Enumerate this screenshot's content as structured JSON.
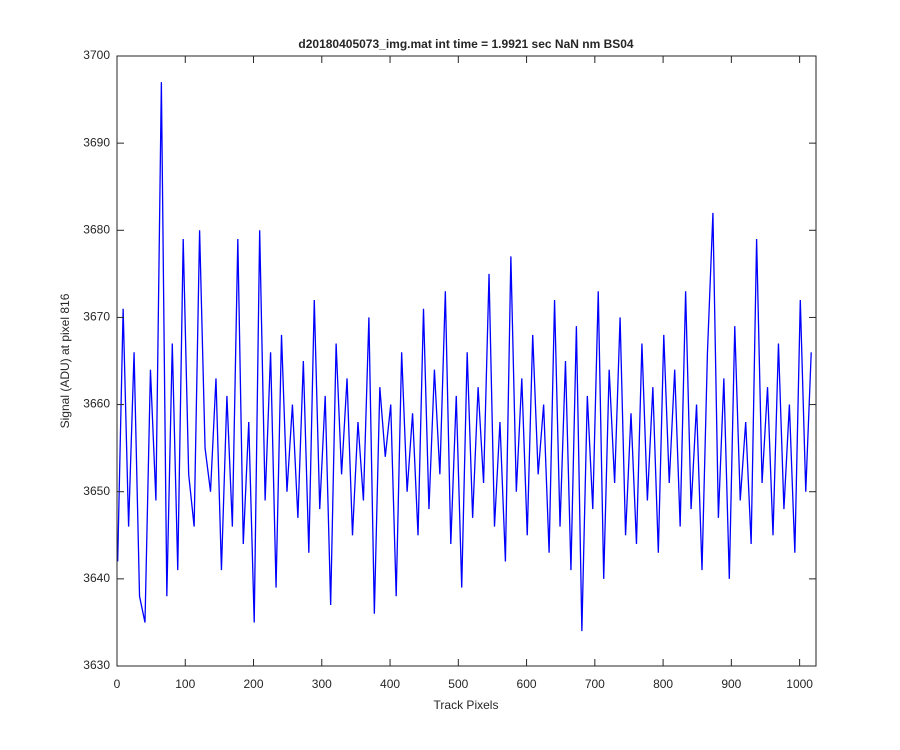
{
  "chart_data": {
    "type": "line",
    "title": "d20180405073_img.mat int time = 1.9921 sec  NaN nm BS04",
    "x_label": "Track Pixels",
    "y_label": "Signal (ADU) at pixel 816",
    "xlim": [
      0,
      1024
    ],
    "xticks": [
      0,
      100,
      200,
      300,
      400,
      500,
      600,
      700,
      800,
      900,
      1000
    ],
    "ylim": [
      3630,
      3700
    ],
    "yticks": [
      3630,
      3640,
      3650,
      3660,
      3670,
      3680,
      3690,
      3700
    ],
    "x": [
      1,
      9,
      17,
      25,
      33,
      41,
      49,
      57,
      65,
      73,
      81,
      89,
      97,
      105,
      113,
      121,
      129,
      137,
      145,
      153,
      161,
      169,
      177,
      185,
      193,
      201,
      209,
      217,
      225,
      233,
      241,
      249,
      257,
      265,
      273,
      281,
      289,
      297,
      305,
      313,
      321,
      329,
      337,
      345,
      353,
      361,
      369,
      377,
      385,
      393,
      401,
      409,
      417,
      425,
      433,
      441,
      449,
      457,
      465,
      473,
      481,
      489,
      497,
      505,
      513,
      521,
      529,
      537,
      545,
      553,
      561,
      569,
      577,
      585,
      593,
      601,
      609,
      617,
      625,
      633,
      641,
      649,
      657,
      665,
      673,
      681,
      689,
      697,
      705,
      713,
      721,
      729,
      737,
      745,
      753,
      761,
      769,
      777,
      785,
      793,
      801,
      809,
      817,
      825,
      833,
      841,
      849,
      857,
      865,
      873,
      881,
      889,
      897,
      905,
      913,
      921,
      929,
      937,
      945,
      953,
      961,
      969,
      977,
      985,
      993,
      1001,
      1009,
      1017
    ],
    "series": [
      {
        "color": "#0000ff",
        "values": [
          3642,
          3671,
          3646,
          3666,
          3638,
          3635,
          3664,
          3649,
          3697,
          3638,
          3667,
          3641,
          3679,
          3652,
          3646,
          3680,
          3655,
          3650,
          3663,
          3641,
          3661,
          3646,
          3679,
          3644,
          3658,
          3635,
          3680,
          3649,
          3666,
          3639,
          3668,
          3650,
          3660,
          3647,
          3665,
          3643,
          3672,
          3648,
          3661,
          3637,
          3667,
          3652,
          3663,
          3645,
          3658,
          3649,
          3670,
          3636,
          3662,
          3654,
          3660,
          3638,
          3666,
          3650,
          3659,
          3645,
          3671,
          3648,
          3664,
          3652,
          3673,
          3644,
          3661,
          3639,
          3666,
          3647,
          3662,
          3651,
          3675,
          3646,
          3658,
          3642,
          3677,
          3650,
          3663,
          3645,
          3668,
          3652,
          3660,
          3643,
          3672,
          3646,
          3665,
          3641,
          3669,
          3634,
          3661,
          3648,
          3673,
          3640,
          3664,
          3651,
          3670,
          3645,
          3659,
          3644,
          3667,
          3649,
          3662,
          3643,
          3668,
          3651,
          3664,
          3646,
          3673,
          3648,
          3660,
          3641,
          3666,
          3682,
          3647,
          3663,
          3640,
          3669,
          3649,
          3658,
          3644,
          3679,
          3651,
          3662,
          3645,
          3667,
          3648,
          3660,
          3643,
          3672,
          3650,
          3666
        ]
      }
    ]
  }
}
